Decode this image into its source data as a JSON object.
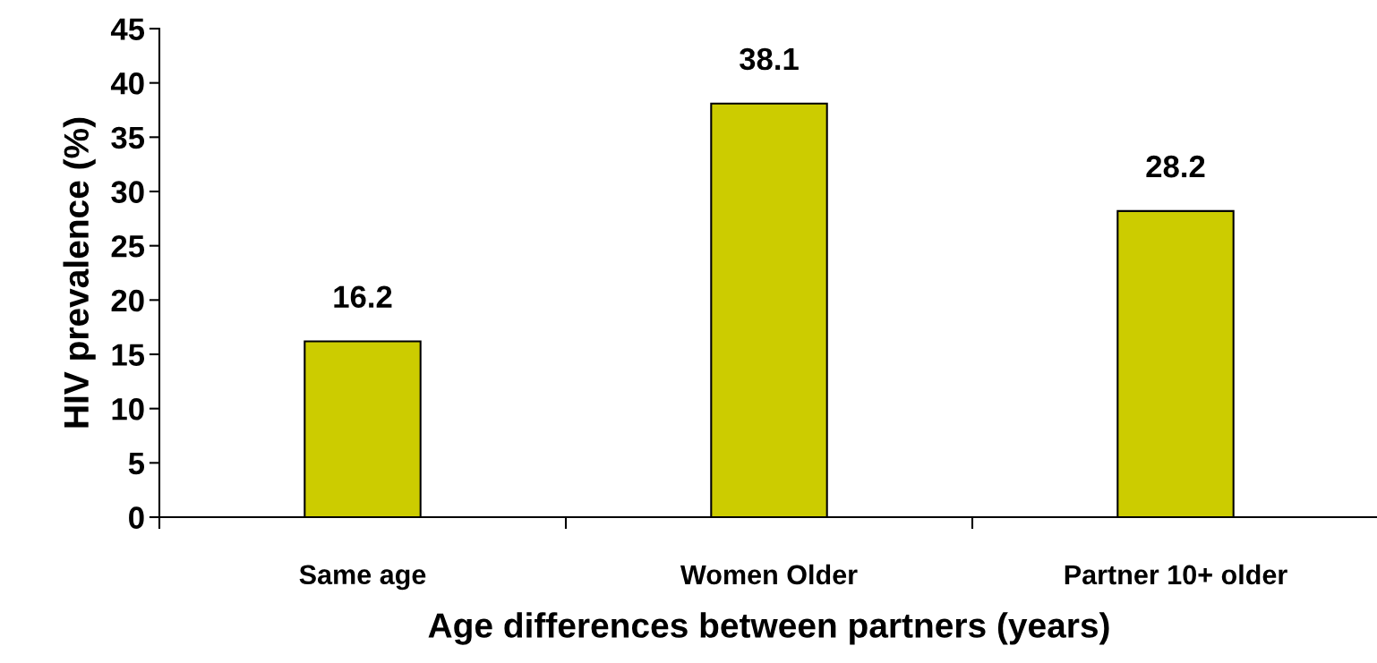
{
  "chart_data": {
    "type": "bar",
    "xlabel": "Age differences between partners (years)",
    "ylabel": "HIV prevalence (%)",
    "categories": [
      "Same age",
      "Women Older",
      "Partner 10+ older"
    ],
    "values": [
      16.2,
      38.1,
      28.2
    ],
    "color": "#cccc00",
    "data_labels": true,
    "ylim": [
      0,
      45
    ],
    "yticks": [
      0,
      5,
      10,
      15,
      20,
      25,
      30,
      35,
      40,
      45
    ],
    "grid": false,
    "legend": false
  }
}
